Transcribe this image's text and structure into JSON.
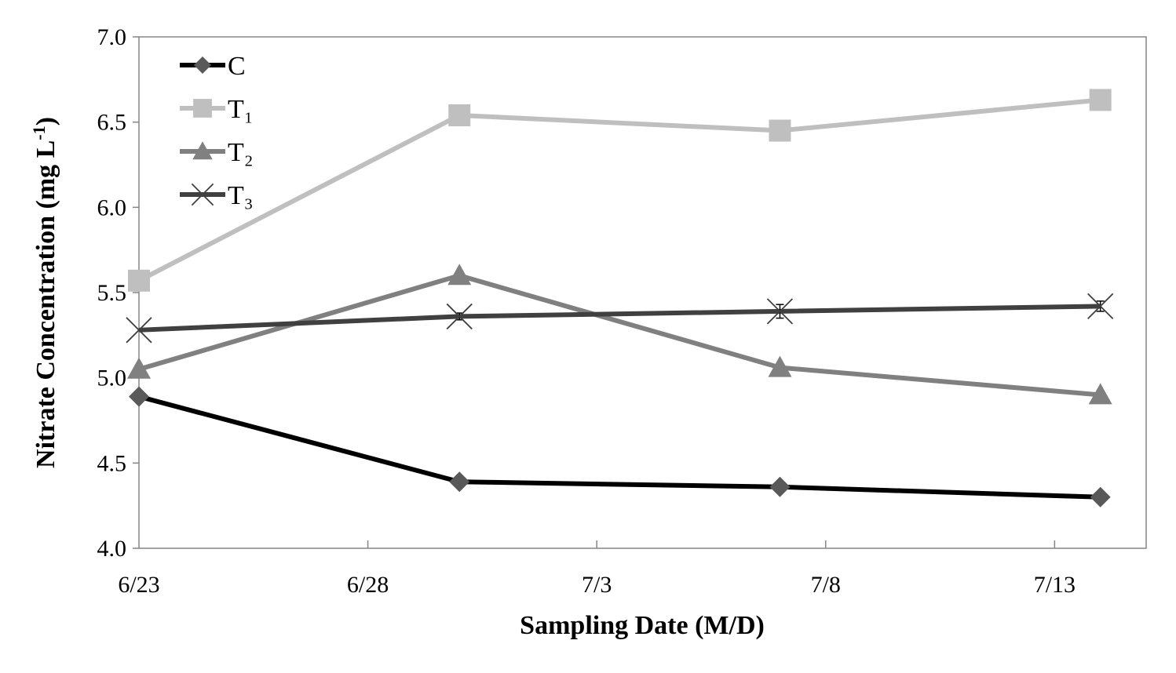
{
  "chart_data": {
    "type": "line",
    "title": "",
    "xlabel": "Sampling Date (M/D)",
    "ylabel": {
      "main": "Nitrate Concentration (mg L",
      "sup": "-1",
      "close": ")"
    },
    "x_axis": {
      "type": "date",
      "min": "6/23",
      "max": "7/15",
      "ticks": [
        "6/23",
        "6/28",
        "7/3",
        "7/8",
        "7/13"
      ]
    },
    "y_axis": {
      "min": 4.0,
      "max": 7.0,
      "step": 0.5,
      "tick_labels": [
        "4.0",
        "4.5",
        "5.0",
        "5.5",
        "6.0",
        "6.5",
        "7.0"
      ]
    },
    "x": [
      "6/23",
      "6/30",
      "7/7",
      "7/14"
    ],
    "series": [
      {
        "name": "C",
        "values": [
          4.89,
          4.39,
          4.36,
          4.3
        ],
        "color": "#000000",
        "marker": "diamond",
        "marker_color": "#595959"
      },
      {
        "name": "T₁",
        "values": [
          5.57,
          6.54,
          6.45,
          6.63
        ],
        "color": "#bfbfbf",
        "marker": "square",
        "marker_color": "#bfbfbf"
      },
      {
        "name": "T₂",
        "values": [
          5.05,
          5.6,
          5.06,
          4.9
        ],
        "color": "#808080",
        "marker": "triangle",
        "marker_color": "#808080"
      },
      {
        "name": "T₃",
        "values": [
          5.28,
          5.36,
          5.39,
          5.42
        ],
        "errors": [
          0.0,
          0.02,
          0.04,
          0.03
        ],
        "color": "#404040",
        "marker": "x",
        "marker_color": "#404040"
      }
    ],
    "grid": false,
    "legend": "top-left"
  }
}
